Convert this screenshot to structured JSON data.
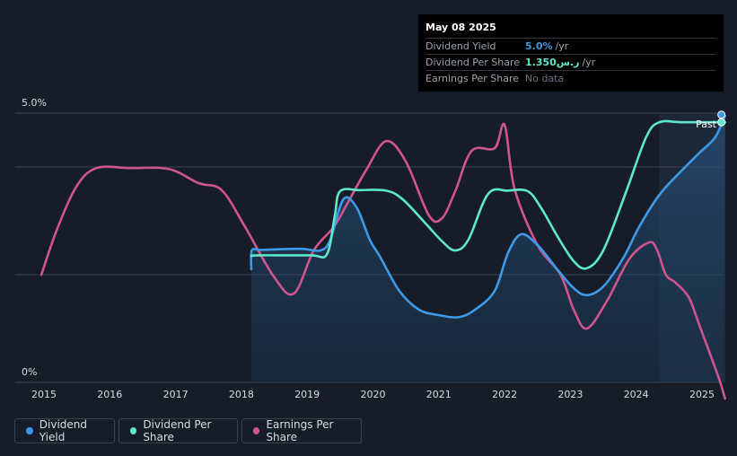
{
  "tooltip": {
    "date": "May 08 2025",
    "rows": [
      {
        "label": "Dividend Yield",
        "value": "5.0%",
        "unit": "/yr",
        "color": "#3d9ae8"
      },
      {
        "label": "Dividend Per Share",
        "value": "1.350ر.س",
        "unit": "/yr",
        "color": "#5de8c9"
      },
      {
        "label": "Earnings Per Share",
        "value": "No data"
      }
    ]
  },
  "legend": [
    {
      "label": "Dividend Yield",
      "color": "#3d9ae8"
    },
    {
      "label": "Dividend Per Share",
      "color": "#5de8c9"
    },
    {
      "label": "Earnings Per Share",
      "color": "#d0548f"
    }
  ],
  "colors": {
    "background": "#161d28",
    "past_band": "#1c2737",
    "grid": "#3a4250",
    "dividend_yield": "#3d9ae8",
    "dividend_per_share": "#5de8c9",
    "earnings_per_share": "#d0548f"
  },
  "chart_data": {
    "type": "line",
    "title": "",
    "xlabel": "",
    "ylabel": "",
    "x_ticks": [
      "2015",
      "2016",
      "2017",
      "2018",
      "2019",
      "2020",
      "2021",
      "2022",
      "2023",
      "2024",
      "2025"
    ],
    "y_axis_labels": [
      "5.0%",
      "0%"
    ],
    "ylim": [
      0,
      5.0
    ],
    "xlim": [
      2014.55,
      2025.35
    ],
    "past_label": "Past",
    "past_start": 2024.35,
    "data_start": 2018.15,
    "series": [
      {
        "name": "Dividend Yield",
        "color": "#3d9ae8",
        "filled": true,
        "unit": "%",
        "points": [
          [
            2018.15,
            2.1
          ],
          [
            2018.16,
            2.45
          ],
          [
            2018.3,
            2.46
          ],
          [
            2018.9,
            2.48
          ],
          [
            2019.2,
            2.45
          ],
          [
            2019.35,
            2.65
          ],
          [
            2019.55,
            3.4
          ],
          [
            2019.75,
            3.25
          ],
          [
            2019.95,
            2.65
          ],
          [
            2020.1,
            2.35
          ],
          [
            2020.4,
            1.7
          ],
          [
            2020.7,
            1.35
          ],
          [
            2021.0,
            1.25
          ],
          [
            2021.3,
            1.21
          ],
          [
            2021.55,
            1.35
          ],
          [
            2021.85,
            1.7
          ],
          [
            2022.05,
            2.4
          ],
          [
            2022.25,
            2.75
          ],
          [
            2022.5,
            2.55
          ],
          [
            2022.8,
            2.1
          ],
          [
            2023.05,
            1.75
          ],
          [
            2023.25,
            1.62
          ],
          [
            2023.5,
            1.78
          ],
          [
            2023.8,
            2.3
          ],
          [
            2024.05,
            2.9
          ],
          [
            2024.35,
            3.48
          ],
          [
            2024.65,
            3.88
          ],
          [
            2024.95,
            4.25
          ],
          [
            2025.2,
            4.55
          ],
          [
            2025.35,
            4.95
          ]
        ]
      },
      {
        "name": "Dividend Per Share",
        "color": "#5de8c9",
        "unit": "SAR",
        "points": [
          [
            2018.15,
            2.35
          ],
          [
            2018.3,
            2.36
          ],
          [
            2019.05,
            2.36
          ],
          [
            2019.3,
            2.38
          ],
          [
            2019.42,
            3.1
          ],
          [
            2019.5,
            3.55
          ],
          [
            2019.8,
            3.57
          ],
          [
            2020.2,
            3.56
          ],
          [
            2020.45,
            3.4
          ],
          [
            2020.8,
            2.95
          ],
          [
            2021.05,
            2.62
          ],
          [
            2021.25,
            2.45
          ],
          [
            2021.45,
            2.65
          ],
          [
            2021.75,
            3.5
          ],
          [
            2022.05,
            3.56
          ],
          [
            2022.35,
            3.55
          ],
          [
            2022.55,
            3.25
          ],
          [
            2022.8,
            2.72
          ],
          [
            2023.05,
            2.25
          ],
          [
            2023.25,
            2.12
          ],
          [
            2023.5,
            2.45
          ],
          [
            2023.85,
            3.55
          ],
          [
            2024.15,
            4.55
          ],
          [
            2024.35,
            4.83
          ],
          [
            2024.7,
            4.83
          ],
          [
            2025.35,
            4.83
          ]
        ]
      },
      {
        "name": "Earnings Per Share",
        "color": "#d0548f",
        "unit": "SAR",
        "points": [
          [
            2014.96,
            2.0
          ],
          [
            2015.2,
            2.85
          ],
          [
            2015.5,
            3.65
          ],
          [
            2015.8,
            3.98
          ],
          [
            2016.3,
            3.98
          ],
          [
            2016.9,
            3.96
          ],
          [
            2017.35,
            3.7
          ],
          [
            2017.7,
            3.57
          ],
          [
            2018.05,
            2.9
          ],
          [
            2018.5,
            1.95
          ],
          [
            2018.8,
            1.65
          ],
          [
            2019.1,
            2.45
          ],
          [
            2019.4,
            2.88
          ],
          [
            2019.6,
            3.3
          ],
          [
            2019.9,
            3.95
          ],
          [
            2020.2,
            4.48
          ],
          [
            2020.5,
            4.1
          ],
          [
            2020.85,
            3.1
          ],
          [
            2021.05,
            3.05
          ],
          [
            2021.25,
            3.55
          ],
          [
            2021.5,
            4.3
          ],
          [
            2021.85,
            4.35
          ],
          [
            2022.0,
            4.78
          ],
          [
            2022.15,
            3.6
          ],
          [
            2022.5,
            2.55
          ],
          [
            2022.85,
            2.0
          ],
          [
            2023.05,
            1.35
          ],
          [
            2023.25,
            1.0
          ],
          [
            2023.55,
            1.5
          ],
          [
            2023.9,
            2.3
          ],
          [
            2024.2,
            2.6
          ],
          [
            2024.32,
            2.45
          ],
          [
            2024.45,
            2.0
          ],
          [
            2024.6,
            1.85
          ],
          [
            2024.8,
            1.58
          ],
          [
            2024.95,
            1.1
          ],
          [
            2025.25,
            0.1
          ],
          [
            2025.35,
            -0.3
          ]
        ]
      }
    ],
    "end_markers": [
      {
        "series": "Dividend Yield",
        "x": 2025.35,
        "y": 4.97
      },
      {
        "series": "Dividend Per Share",
        "x": 2025.35,
        "y": 4.83
      }
    ]
  }
}
